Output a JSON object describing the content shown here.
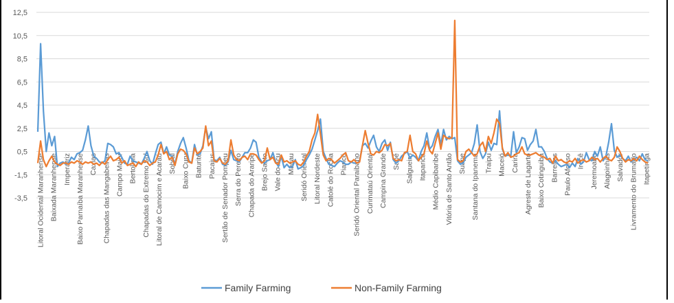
{
  "chart_data": {
    "type": "line",
    "title": "",
    "xlabel": "",
    "ylabel": "",
    "ylim": [
      -3.5,
      12.5
    ],
    "yticks": [
      12.5,
      10.5,
      8.5,
      6.5,
      4.5,
      2.5,
      0.5,
      -1.5,
      -3.5
    ],
    "ytick_labels": [
      "12,5",
      "10,5",
      "8,5",
      "6,5",
      "4,5",
      "2,5",
      "0,5",
      "-1,5",
      "-3,5"
    ],
    "grid": true,
    "legend_position": "bottom",
    "category_labels": [
      "Litoral Ocidental Maranhense",
      "Baixada Maranhense",
      "Imperatriz",
      "Baixo Parnaíba Maranhense",
      "Caxias",
      "Chapadas das Mangabeiras",
      "Campo Maior",
      "Bertolínia",
      "Chapadas do Extremo Sul",
      "Litoral de Camocim e Acaraú",
      "Sobral",
      "Baixo Curu",
      "Baturité",
      "Pacajus",
      "Sertão de Senador Pompeu",
      "Serra do Pereiro",
      "Chapada do Araripe",
      "Brejo Santo",
      "Vale do Açu",
      "Macau",
      "Seridó Oriental",
      "Litoral Nordeste",
      "Catolé do Rocha",
      "Piancó",
      "Seridó Oriental Paraibano",
      "Curimataú Oriental",
      "Campina Grande",
      "Sapé",
      "Salgueiro",
      "Itaparica",
      "Médio Capibaribe",
      "Vitória de Santo Antão",
      "Suape",
      "Santana do Ipanema",
      "Traipu",
      "Maceió",
      "Carira",
      "Agreste de Lagarto",
      "Baixo Cotinguiba",
      "Barreiras",
      "Paulo Afonso",
      "Irecê",
      "Jeremoabo",
      "Alagoinhas",
      "Salvador",
      "Livramento do Brumado",
      "Itapetinga"
    ],
    "series": [
      {
        "name": "Family Farming",
        "color": "#5B9BD5",
        "values": [
          2.2,
          9.8,
          4.0,
          0.5,
          2.1,
          1.0,
          1.8,
          -0.8,
          -0.5,
          -0.4,
          -0.6,
          -0.5,
          0.0,
          -0.2,
          0.3,
          0.4,
          0.6,
          1.5,
          2.7,
          1.0,
          0.1,
          -0.1,
          -0.4,
          -0.5,
          -0.3,
          1.2,
          1.1,
          0.9,
          0.3,
          0.4,
          0.0,
          -0.5,
          -0.6,
          0.1,
          -0.3,
          -0.4,
          -0.5,
          -0.6,
          -0.1,
          0.5,
          -0.3,
          -0.6,
          0.3,
          1.1,
          1.3,
          0.3,
          0.9,
          0.2,
          0.1,
          -0.6,
          0.5,
          1.2,
          1.7,
          0.8,
          -0.3,
          -0.5,
          1.1,
          0.2,
          0.3,
          1.0,
          2.6,
          1.6,
          2.2,
          -0.2,
          -0.3,
          0.0,
          -0.6,
          -0.7,
          -0.4,
          0.6,
          -0.2,
          -0.3,
          -0.4,
          0.0,
          0.4,
          0.4,
          0.8,
          1.5,
          1.3,
          0.0,
          -0.4,
          -0.5,
          -0.3,
          -0.2,
          0.4,
          -0.4,
          -0.8,
          0.1,
          -0.9,
          -0.6,
          -0.9,
          -0.8,
          -0.2,
          -1.0,
          -0.9,
          -0.7,
          -0.2,
          0.2,
          0.7,
          1.5,
          2.3,
          3.3,
          0.5,
          -0.1,
          -0.6,
          -0.7,
          -0.8,
          -0.5,
          -0.3,
          -0.4,
          -0.6,
          -0.6,
          -0.4,
          -0.5,
          -0.5,
          -0.3,
          1.0,
          1.2,
          0.8,
          1.4,
          1.9,
          0.9,
          0.5,
          1.2,
          1.5,
          0.6,
          1.3,
          -0.2,
          -0.5,
          -0.3,
          0.1,
          0.3,
          0.5,
          -0.1,
          0.2,
          0.0,
          -0.3,
          0.5,
          1.0,
          2.1,
          0.7,
          1.0,
          1.8,
          2.4,
          1.1,
          2.4,
          1.5,
          1.8,
          1.6,
          1.7,
          -0.3,
          -0.6,
          -0.5,
          0.0,
          0.2,
          0.4,
          1.2,
          2.8,
          0.5,
          -0.1,
          0.3,
          1.3,
          0.6,
          1.2,
          1.1,
          4.0,
          0.7,
          0.1,
          0.2,
          0.1,
          2.2,
          0.4,
          0.9,
          1.7,
          1.6,
          0.6,
          1.1,
          1.4,
          2.4,
          0.9,
          0.9,
          0.5,
          -0.1,
          -0.4,
          -0.5,
          -0.3,
          -0.6,
          -0.8,
          -0.7,
          -0.6,
          -0.9,
          -0.5,
          -0.8,
          -0.1,
          -0.6,
          -0.4,
          0.4,
          -0.2,
          -0.3,
          0.5,
          0.1,
          0.9,
          -0.3,
          0.1,
          1.3,
          2.9,
          0.6,
          0.0,
          0.2,
          -0.1,
          -0.3,
          0.1,
          -0.4,
          -0.2,
          0.0,
          -0.3,
          0.3,
          -0.2,
          -0.3
        ]
      },
      {
        "name": "Non-Family Farming",
        "color": "#ED7D31",
        "values": [
          -0.5,
          1.4,
          -0.2,
          -0.8,
          -0.3,
          0.1,
          -0.4,
          -0.6,
          -0.7,
          -0.5,
          -0.5,
          -0.6,
          -0.4,
          -0.5,
          -0.3,
          -0.4,
          -0.6,
          -0.4,
          -0.5,
          -0.4,
          -0.6,
          -0.5,
          -0.7,
          -0.4,
          -0.6,
          -0.2,
          0.1,
          -0.3,
          -0.2,
          0.0,
          -0.5,
          -0.3,
          -0.7,
          -0.6,
          -0.5,
          -0.8,
          -0.4,
          -0.6,
          -0.3,
          -0.4,
          -0.7,
          -0.5,
          -0.4,
          0.2,
          1.1,
          0.3,
          0.5,
          -0.2,
          0.0,
          -0.7,
          0.3,
          0.7,
          0.6,
          0.3,
          -0.4,
          -0.5,
          0.8,
          0.3,
          0.5,
          0.8,
          2.7,
          1.0,
          1.4,
          -0.3,
          -0.4,
          -0.1,
          -0.5,
          -0.6,
          -0.3,
          1.5,
          0.2,
          -0.2,
          -0.3,
          0.0,
          0.1,
          -0.2,
          0.3,
          0.3,
          0.2,
          -0.2,
          -0.5,
          -0.3,
          0.8,
          -0.2,
          0.0,
          -0.5,
          -0.6,
          0.2,
          -0.4,
          -0.3,
          -0.5,
          -0.4,
          -0.3,
          -0.6,
          -0.7,
          -0.4,
          0.1,
          0.5,
          1.5,
          2.1,
          3.7,
          2.0,
          0.2,
          -0.3,
          -0.1,
          -0.2,
          -0.5,
          -0.3,
          -0.1,
          0.2,
          0.4,
          -0.3,
          -0.4,
          -0.2,
          -0.5,
          -0.4,
          1.0,
          2.3,
          1.2,
          0.3,
          0.2,
          0.5,
          0.4,
          0.6,
          1.1,
          1.0,
          1.2,
          -0.1,
          -0.3,
          -0.2,
          -0.3,
          0.4,
          0.5,
          1.9,
          0.5,
          0.3,
          -0.3,
          0.0,
          0.3,
          1.4,
          0.6,
          0.3,
          1.2,
          2.1,
          0.7,
          1.9,
          1.7,
          1.6,
          1.7,
          11.8,
          -0.2,
          -0.4,
          -0.3,
          0.5,
          0.7,
          0.4,
          0.1,
          0.3,
          1.0,
          1.3,
          0.5,
          1.8,
          1.2,
          2.1,
          3.3,
          2.9,
          0.8,
          0.1,
          0.4,
          0.0,
          0.1,
          0.3,
          0.4,
          0.9,
          0.3,
          0.2,
          0.2,
          0.3,
          0.4,
          0.2,
          0.1,
          0.0,
          -0.2,
          -0.1,
          -0.5,
          0.1,
          -0.3,
          -0.2,
          -0.4,
          -0.5,
          -0.3,
          -0.4,
          -0.1,
          -0.5,
          -0.3,
          -0.2,
          -0.4,
          -0.3,
          0.0,
          -0.2,
          -0.1,
          -0.4,
          -0.1,
          0.1,
          -0.2,
          -0.3,
          0.0,
          0.9,
          0.5,
          -0.1,
          -0.4,
          -0.2,
          -0.3,
          -0.1,
          -0.3,
          0.1,
          -0.2,
          -0.4,
          -0.5
        ]
      }
    ]
  }
}
